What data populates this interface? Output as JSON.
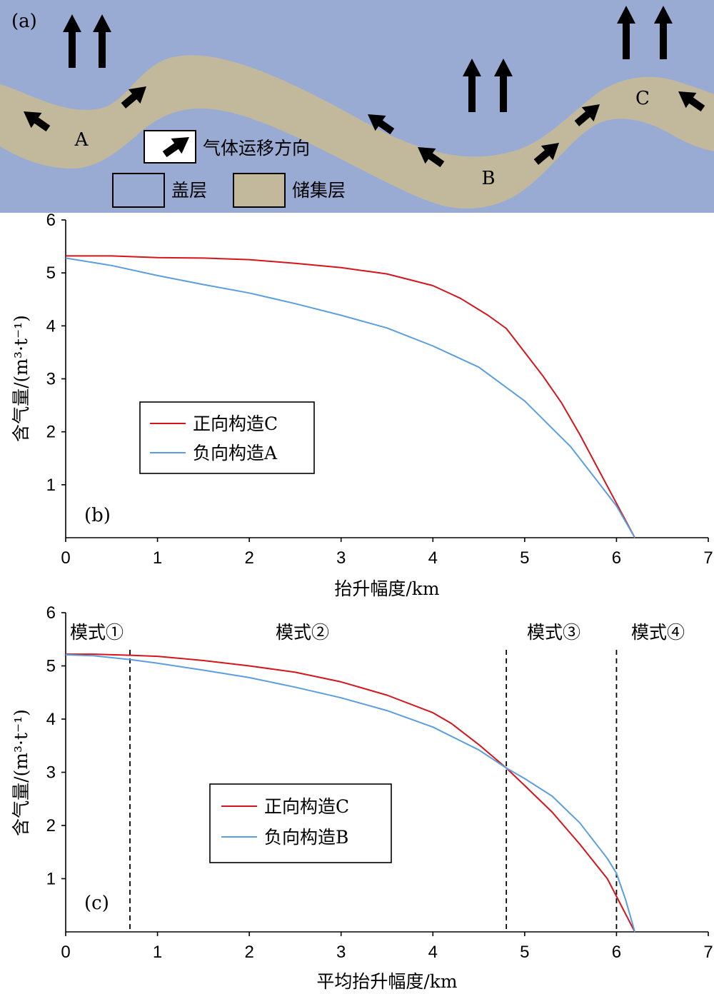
{
  "panel_a": {
    "label": "(a)",
    "colors": {
      "caprock": "#99abd3",
      "reservoir": "#c2b99d"
    },
    "arrow_icon": "arrow-icon",
    "legend": {
      "migration": "气体运移方向",
      "caprock": "盖层",
      "reservoir": "储集层"
    },
    "points": [
      "A",
      "B",
      "C"
    ]
  },
  "chart_data": [
    {
      "type": "line",
      "panel": "(b)",
      "xlabel": "抬升幅度/km",
      "ylabel": "含气量/(m³·t⁻¹)",
      "xlim": [
        0,
        7
      ],
      "ylim": [
        0,
        6
      ],
      "xticks": [
        0,
        1,
        2,
        3,
        4,
        5,
        6,
        7
      ],
      "yticks": [
        1,
        2,
        3,
        4,
        5,
        6
      ],
      "legend_position": "center-left",
      "series": [
        {
          "name": "正向构造C",
          "color": "#d4151b",
          "x": [
            0,
            0.5,
            1,
            1.5,
            2,
            2.5,
            3,
            3.5,
            4,
            4.3,
            4.6,
            4.8,
            5,
            5.2,
            5.4,
            5.6,
            5.8,
            6,
            6.2
          ],
          "y": [
            5.32,
            5.32,
            5.29,
            5.28,
            5.25,
            5.18,
            5.1,
            4.98,
            4.76,
            4.52,
            4.2,
            3.95,
            3.5,
            3.05,
            2.55,
            1.95,
            1.3,
            0.65,
            0
          ]
        },
        {
          "name": "负向构造A",
          "color": "#5b9ee0",
          "x": [
            0,
            0.5,
            1,
            1.5,
            2,
            2.5,
            3,
            3.5,
            4,
            4.5,
            5,
            5.5,
            5.8,
            6,
            6.2
          ],
          "y": [
            5.28,
            5.14,
            4.95,
            4.78,
            4.62,
            4.42,
            4.2,
            3.96,
            3.62,
            3.22,
            2.58,
            1.72,
            1.05,
            0.6,
            0
          ]
        }
      ]
    },
    {
      "type": "line",
      "panel": "(c)",
      "xlabel": "平均抬升幅度/km",
      "ylabel": "含气量/(m³·t⁻¹)",
      "xlim": [
        0,
        7
      ],
      "ylim": [
        0,
        6
      ],
      "xticks": [
        0,
        1,
        2,
        3,
        4,
        5,
        6,
        7
      ],
      "yticks": [
        1,
        2,
        3,
        4,
        5,
        6
      ],
      "legend_position": "center-left",
      "mode_boundaries": [
        0.7,
        4.8,
        6.0
      ],
      "modes": [
        "模式①",
        "模式②",
        "模式③",
        "模式④"
      ],
      "series": [
        {
          "name": "正向构造C",
          "color": "#d4151b",
          "x": [
            0,
            0.3,
            0.7,
            1,
            1.5,
            2,
            2.5,
            3,
            3.5,
            4,
            4.2,
            4.5,
            4.8,
            5,
            5.3,
            5.6,
            5.9,
            6.2
          ],
          "y": [
            5.22,
            5.22,
            5.2,
            5.18,
            5.1,
            5.0,
            4.88,
            4.7,
            4.45,
            4.12,
            3.92,
            3.52,
            3.08,
            2.75,
            2.25,
            1.65,
            1.0,
            0
          ]
        },
        {
          "name": "负向构造B",
          "color": "#5b9ee0",
          "x": [
            0,
            0.3,
            0.7,
            1,
            1.5,
            2,
            2.5,
            3,
            3.5,
            4,
            4.5,
            4.8,
            5,
            5.3,
            5.6,
            5.9,
            6.0,
            6.1,
            6.2
          ],
          "y": [
            5.21,
            5.19,
            5.12,
            5.05,
            4.92,
            4.78,
            4.6,
            4.4,
            4.16,
            3.85,
            3.42,
            3.08,
            2.88,
            2.55,
            2.05,
            1.38,
            1.1,
            0.6,
            0
          ]
        }
      ]
    }
  ]
}
